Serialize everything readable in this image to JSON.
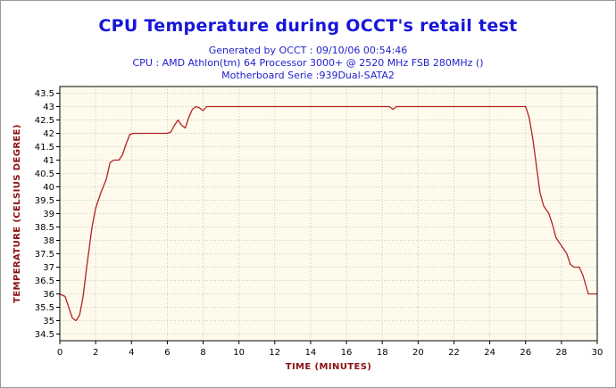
{
  "chart_data": {
    "type": "line",
    "title": "CPU Temperature during OCCT's retail test",
    "subtitle": [
      "Generated by OCCT : 09/10/06 00:54:46",
      "CPU : AMD Athlon(tm) 64 Processor 3000+ @ 2520 MHz FSB 280MHz ()",
      "Motherboard Serie :939Dual-SATA2"
    ],
    "xlabel": "TIME (MINUTES)",
    "ylabel": "TEMPERATURE (CELSIUS DEGREE)",
    "xlim": [
      0,
      30
    ],
    "ylim": [
      34.25,
      43.75
    ],
    "x_ticks": [
      "0",
      "2",
      "4",
      "6",
      "8",
      "10",
      "12",
      "14",
      "16",
      "18",
      "20",
      "22",
      "24",
      "26",
      "28",
      "30"
    ],
    "y_ticks": [
      "34.5",
      "35",
      "35.5",
      "36",
      "36.5",
      "37",
      "37.5",
      "38",
      "38.5",
      "39",
      "39.5",
      "40",
      "40.5",
      "41",
      "41.5",
      "42",
      "42.5",
      "43",
      "43.5"
    ],
    "grid": true,
    "line_color": "#b22222",
    "plot_background": "#fffbec",
    "series": [
      {
        "x": [
          0,
          0.3,
          0.5,
          0.7,
          0.9,
          1.1,
          1.3,
          1.5,
          1.8,
          2.0,
          2.3,
          2.6,
          2.8,
          3.0,
          3.3,
          3.5,
          3.7,
          3.9,
          4.1,
          4.5,
          5.0,
          5.5,
          6.0,
          6.2,
          6.4,
          6.6,
          6.8,
          7.0,
          7.2,
          7.4,
          7.6,
          7.8,
          8.0,
          8.2,
          9,
          10,
          12,
          14,
          16,
          18,
          18.4,
          18.6,
          18.8,
          19.2,
          20,
          22,
          24,
          25.5,
          26.0,
          26.2,
          26.4,
          26.6,
          26.8,
          27.0,
          27.3,
          27.5,
          27.7,
          28.0,
          28.3,
          28.5,
          28.7,
          29.0,
          29.2,
          29.5,
          30
        ],
        "y": [
          36,
          35.9,
          35.5,
          35.1,
          35,
          35.2,
          35.9,
          37,
          38.5,
          39.2,
          39.8,
          40.3,
          40.9,
          41,
          41,
          41.2,
          41.6,
          41.95,
          42,
          42,
          42,
          42,
          42,
          42.05,
          42.3,
          42.5,
          42.3,
          42.2,
          42.6,
          42.9,
          43,
          42.95,
          42.85,
          43,
          43,
          43,
          43,
          43,
          43,
          43,
          43,
          42.9,
          43,
          43,
          43,
          43,
          43,
          43,
          43,
          42.6,
          41.8,
          40.8,
          39.8,
          39.3,
          39,
          38.6,
          38.1,
          37.8,
          37.5,
          37.1,
          37,
          37,
          36.7,
          36,
          36
        ]
      }
    ]
  }
}
